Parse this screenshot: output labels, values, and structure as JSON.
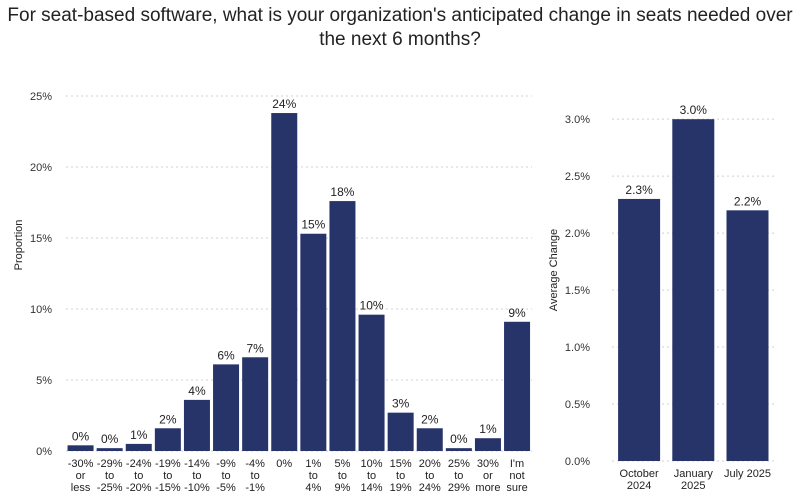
{
  "title_lines": [
    "For seat-based software, what is your organization's anticipated change in seats needed over",
    "the next 6 months?"
  ],
  "colors": {
    "bar": "#26346a",
    "grid": "#d0d0d0"
  },
  "chart_data": [
    {
      "type": "bar",
      "title": "For seat-based software, what is your organization's anticipated change in seats needed over the next 6 months?",
      "xlabel": "",
      "ylabel": "Proportion",
      "ylim": [
        0,
        25
      ],
      "yticks": [
        "0%",
        "5%",
        "10%",
        "15%",
        "20%",
        "25%"
      ],
      "ytick_values": [
        0,
        5,
        10,
        15,
        20,
        25
      ],
      "grid": true,
      "categories": [
        [
          "-30%",
          "or",
          "less"
        ],
        [
          "-29%",
          "to",
          "-25%"
        ],
        [
          "-24%",
          "to",
          "-20%"
        ],
        [
          "-19%",
          "to",
          "-15%"
        ],
        [
          "-14%",
          "to",
          "-10%"
        ],
        [
          "-9%",
          "to",
          "-5%"
        ],
        [
          "-4%",
          "to",
          "-1%"
        ],
        [
          "0%"
        ],
        [
          "1%",
          "to",
          "4%"
        ],
        [
          "5%",
          "to",
          "9%"
        ],
        [
          "10%",
          "to",
          "14%"
        ],
        [
          "15%",
          "to",
          "19%"
        ],
        [
          "20%",
          "to",
          "24%"
        ],
        [
          "25%",
          "to",
          "29%"
        ],
        [
          "30%",
          "or",
          "more"
        ],
        [
          "I'm",
          "not",
          "sure"
        ]
      ],
      "values": [
        0.4,
        0.2,
        0.5,
        1.6,
        3.6,
        6.1,
        6.6,
        23.8,
        15.3,
        17.6,
        9.6,
        2.7,
        1.6,
        0.2,
        0.9,
        9.1
      ],
      "labels": [
        "0%",
        "0%",
        "1%",
        "2%",
        "4%",
        "6%",
        "7%",
        "24%",
        "15%",
        "18%",
        "10%",
        "3%",
        "2%",
        "0%",
        "1%",
        "9%"
      ]
    },
    {
      "type": "bar",
      "title": "",
      "xlabel": "",
      "ylabel": "Average Change",
      "ylim": [
        0,
        3.3
      ],
      "yticks": [
        "0.0%",
        "0.5%",
        "1.0%",
        "1.5%",
        "2.0%",
        "2.5%",
        "3.0%"
      ],
      "ytick_values": [
        0,
        0.5,
        1.0,
        1.5,
        2.0,
        2.5,
        3.0
      ],
      "grid": true,
      "categories": [
        [
          "October",
          "2024"
        ],
        [
          "January",
          "2025"
        ],
        [
          "July 2025"
        ]
      ],
      "values": [
        2.3,
        3.0,
        2.2
      ],
      "labels": [
        "2.3%",
        "3.0%",
        "2.2%"
      ]
    }
  ]
}
